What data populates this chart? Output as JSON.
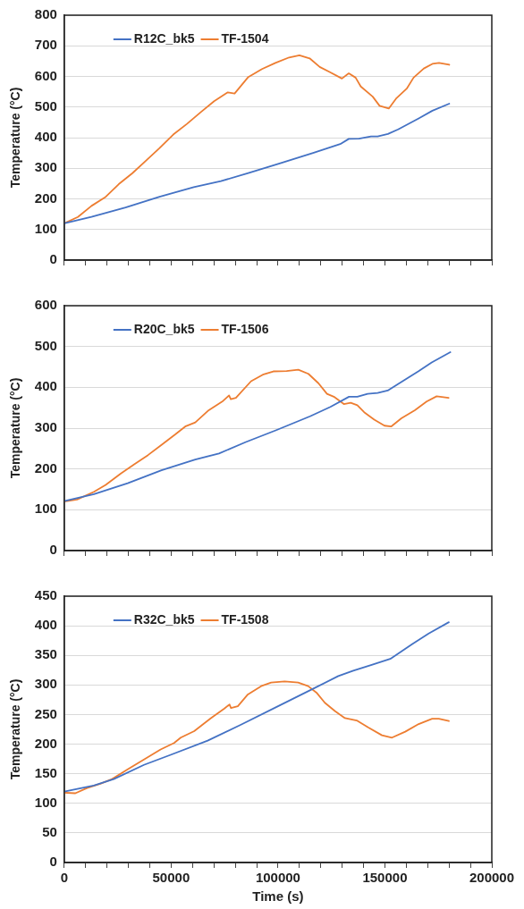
{
  "chart_data": [
    {
      "type": "line",
      "ylabel": "Temperature (°C)",
      "xlim": [
        0,
        200000
      ],
      "xticks": [
        0,
        {
          "value": 10000,
          "label": null
        },
        {
          "value": 20000,
          "label": null
        },
        {
          "value": 30000,
          "label": null
        },
        {
          "value": 40000,
          "label": null
        },
        50000,
        {
          "value": 60000,
          "label": null
        },
        {
          "value": 70000,
          "label": null
        },
        {
          "value": 80000,
          "label": null
        },
        {
          "value": 90000,
          "label": null
        },
        100000,
        {
          "value": 110000,
          "label": null
        },
        {
          "value": 120000,
          "label": null
        },
        {
          "value": 130000,
          "label": null
        },
        {
          "value": 140000,
          "label": null
        },
        150000,
        {
          "value": 160000,
          "label": null
        },
        {
          "value": 170000,
          "label": null
        },
        {
          "value": 180000,
          "label": null
        },
        {
          "value": 190000,
          "label": null
        },
        200000
      ],
      "ylim": [
        0,
        800
      ],
      "yticks": [
        0,
        100,
        200,
        300,
        400,
        500,
        600,
        700,
        800
      ],
      "tick_labels": "y",
      "grid": "y",
      "legend": "top left",
      "marker": "none",
      "line_style": "solid",
      "series": [
        {
          "name": "R12C_bk5",
          "color": "#4472c4",
          "x": [
            0,
            12750,
            28700,
            44600,
            60600,
            73300,
            86100,
            100400,
            116400,
            129100,
            133100,
            137900,
            143500,
            146600,
            151400,
            156200,
            165800,
            172200,
            180100
          ],
          "values": [
            120,
            141,
            172,
            207,
            238,
            258,
            284,
            315,
            350,
            379,
            396,
            397,
            404,
            404,
            412,
            427,
            463,
            488,
            511
          ]
        },
        {
          "name": "TF-1504",
          "color": "#ed7d31",
          "x": [
            0,
            6400,
            12750,
            19100,
            25500,
            31900,
            38300,
            44600,
            51000,
            57400,
            63800,
            70100,
            76500,
            79700,
            86100,
            92500,
            98800,
            105200,
            110000,
            114800,
            119500,
            124300,
            129900,
            133100,
            136300,
            138700,
            144300,
            147500,
            151800,
            155400,
            160200,
            163400,
            168200,
            172200,
            175300,
            180100
          ],
          "values": [
            120,
            141,
            177,
            205,
            248,
            284,
            325,
            366,
            410,
            445,
            483,
            519,
            548,
            544,
            598,
            624,
            644,
            662,
            669,
            659,
            631,
            614,
            593,
            610,
            596,
            567,
            534,
            504,
            495,
            529,
            560,
            596,
            626,
            641,
            644,
            638
          ]
        }
      ]
    },
    {
      "type": "line",
      "ylabel": "Temperature (°C)",
      "xlim": [
        0,
        200000
      ],
      "xticks": [
        0,
        {
          "value": 10000,
          "label": null
        },
        {
          "value": 20000,
          "label": null
        },
        {
          "value": 30000,
          "label": null
        },
        {
          "value": 40000,
          "label": null
        },
        50000,
        {
          "value": 60000,
          "label": null
        },
        {
          "value": 70000,
          "label": null
        },
        {
          "value": 80000,
          "label": null
        },
        {
          "value": 90000,
          "label": null
        },
        100000,
        {
          "value": 110000,
          "label": null
        },
        {
          "value": 120000,
          "label": null
        },
        {
          "value": 130000,
          "label": null
        },
        {
          "value": 140000,
          "label": null
        },
        150000,
        {
          "value": 160000,
          "label": null
        },
        {
          "value": 170000,
          "label": null
        },
        {
          "value": 180000,
          "label": null
        },
        {
          "value": 190000,
          "label": null
        },
        200000
      ],
      "ylim": [
        0,
        600
      ],
      "yticks": [
        0,
        100,
        200,
        300,
        400,
        500,
        600
      ],
      "tick_labels": "y",
      "grid": "y",
      "legend": "top left",
      "marker": "none",
      "line_style": "solid",
      "series": [
        {
          "name": "R20C_bk5",
          "color": "#4472c4",
          "x": [
            0,
            13900,
            29700,
            45500,
            61300,
            72400,
            85000,
            99200,
            115000,
            124500,
            133200,
            137100,
            141900,
            146600,
            151300,
            156100,
            165600,
            171900,
            180600
          ],
          "values": [
            121,
            138,
            165,
            197,
            223,
            238,
            266,
            295,
            329,
            352,
            377,
            377,
            384,
            386,
            392,
            408,
            439,
            461,
            486
          ]
        },
        {
          "name": "TF-1506",
          "color": "#ed7d31",
          "x": [
            0,
            6000,
            13900,
            19400,
            26500,
            32900,
            39200,
            45500,
            51800,
            56600,
            61300,
            67600,
            73900,
            77100,
            77900,
            80300,
            87400,
            92900,
            97800,
            104000,
            109500,
            114200,
            118900,
            122900,
            126100,
            130800,
            134000,
            137100,
            140300,
            145000,
            149800,
            152900,
            157700,
            164000,
            169500,
            174200,
            179800
          ],
          "values": [
            120,
            125,
            144,
            161,
            189,
            212,
            234,
            259,
            284,
            304,
            314,
            344,
            365,
            380,
            371,
            374,
            415,
            431,
            439,
            440,
            443,
            433,
            410,
            384,
            377,
            359,
            362,
            356,
            339,
            321,
            306,
            304,
            324,
            344,
            365,
            378,
            374
          ]
        }
      ]
    },
    {
      "type": "line",
      "xlabel": "Time (s)",
      "ylabel": "Temperature (°C)",
      "xlim": [
        0,
        200000
      ],
      "xticks": [
        0,
        {
          "value": 10000,
          "label": null
        },
        {
          "value": 20000,
          "label": null
        },
        {
          "value": 30000,
          "label": null
        },
        {
          "value": 40000,
          "label": null
        },
        50000,
        {
          "value": 60000,
          "label": null
        },
        {
          "value": 70000,
          "label": null
        },
        {
          "value": 80000,
          "label": null
        },
        {
          "value": 90000,
          "label": null
        },
        100000,
        {
          "value": 110000,
          "label": null
        },
        {
          "value": 120000,
          "label": null
        },
        {
          "value": 130000,
          "label": null
        },
        {
          "value": 140000,
          "label": null
        },
        150000,
        {
          "value": 160000,
          "label": null
        },
        {
          "value": 170000,
          "label": null
        },
        {
          "value": 180000,
          "label": null
        },
        {
          "value": 190000,
          "label": null
        },
        200000
      ],
      "ylim": [
        0,
        450
      ],
      "yticks": [
        0,
        50,
        100,
        150,
        200,
        250,
        300,
        350,
        400,
        450
      ],
      "grid": "y",
      "legend": "top left",
      "marker": "none",
      "line_style": "solid",
      "series": [
        {
          "name": "R32C_bk5",
          "color": "#4472c4",
          "x": [
            0,
            13800,
            23200,
            37300,
            49800,
            67100,
            82700,
            100000,
            117200,
            128200,
            135200,
            143800,
            152500,
            162700,
            170500,
            179900
          ],
          "values": [
            120,
            130,
            141,
            165,
            182,
            206,
            233,
            264,
            295,
            315,
            324,
            334,
            344,
            369,
            387,
            406
          ]
        },
        {
          "name": "TF-1508",
          "color": "#ed7d31",
          "x": [
            0,
            5200,
            10700,
            16900,
            22400,
            29500,
            37300,
            45100,
            51400,
            54500,
            60800,
            68600,
            74900,
            77300,
            78000,
            81200,
            85900,
            92100,
            96800,
            103100,
            109400,
            114100,
            118000,
            121900,
            126600,
            131300,
            136800,
            142300,
            148600,
            153300,
            159500,
            165800,
            172100,
            175200,
            179900
          ],
          "values": [
            118,
            117,
            126,
            133,
            141,
            157,
            174,
            191,
            202,
            211,
            222,
            244,
            260,
            267,
            261,
            264,
            284,
            298,
            304,
            306,
            304,
            298,
            287,
            270,
            256,
            244,
            240,
            228,
            215,
            211,
            221,
            234,
            243,
            243,
            239
          ]
        }
      ]
    }
  ]
}
